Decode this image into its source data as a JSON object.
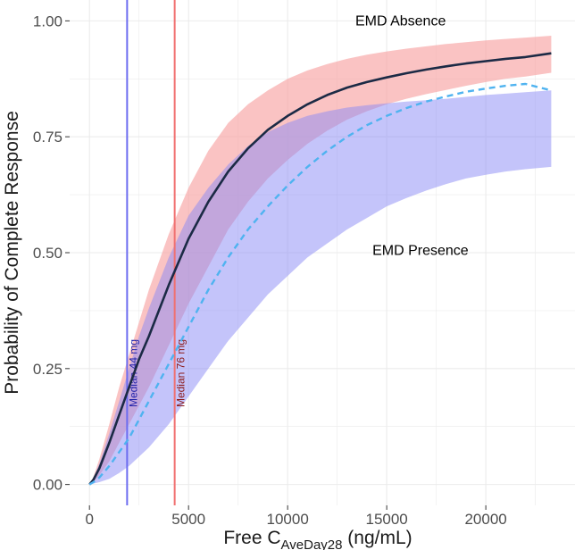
{
  "chart_data": {
    "type": "line",
    "xlabel_main": "Free C",
    "xlabel_sub": "AveDay28",
    "xlabel_unit": " (ng/mL)",
    "ylabel": "Probability of Complete Response",
    "xlim": [
      -1000,
      24500
    ],
    "ylim": [
      -0.045,
      1.045
    ],
    "x_ticks": [
      0,
      5000,
      10000,
      15000,
      20000
    ],
    "x_tick_labels": [
      "0",
      "5000",
      "10000",
      "15000",
      "20000"
    ],
    "y_ticks": [
      0,
      0.25,
      0.5,
      0.75,
      1.0
    ],
    "y_tick_labels": [
      "0.00",
      "0.25",
      "0.50",
      "0.75",
      "1.00"
    ],
    "grid": true,
    "colors": {
      "absence_line": "#1b2a45",
      "absence_band": "#f8a3a3",
      "presence_line": "#4fb3f0",
      "presence_band": "#8a8af5",
      "median44": "#6d6df0",
      "median76": "#f07070",
      "median44_text": "#2222aa",
      "median76_text": "#8b1a1a",
      "grid": "#ebebeb"
    },
    "x": [
      0,
      200,
      500,
      1000,
      1500,
      2000,
      2500,
      3000,
      4000,
      5000,
      6000,
      7000,
      8000,
      9000,
      10000,
      11000,
      12000,
      13000,
      14000,
      15000,
      16000,
      17000,
      18000,
      19000,
      20000,
      21000,
      22000,
      23300
    ],
    "series": [
      {
        "name": "EMD Absence",
        "style": "solid",
        "values": [
          0.0,
          0.01,
          0.035,
          0.09,
          0.15,
          0.21,
          0.27,
          0.32,
          0.43,
          0.53,
          0.61,
          0.675,
          0.725,
          0.765,
          0.795,
          0.82,
          0.84,
          0.856,
          0.868,
          0.878,
          0.887,
          0.895,
          0.902,
          0.908,
          0.913,
          0.918,
          0.922,
          0.93
        ],
        "lower": [
          0.0,
          0.005,
          0.02,
          0.05,
          0.09,
          0.13,
          0.17,
          0.21,
          0.3,
          0.39,
          0.47,
          0.55,
          0.61,
          0.66,
          0.7,
          0.735,
          0.763,
          0.787,
          0.805,
          0.82,
          0.832,
          0.842,
          0.851,
          0.86,
          0.868,
          0.875,
          0.88,
          0.888
        ],
        "upper": [
          0.0,
          0.016,
          0.055,
          0.13,
          0.21,
          0.28,
          0.35,
          0.42,
          0.54,
          0.64,
          0.72,
          0.78,
          0.82,
          0.85,
          0.875,
          0.893,
          0.907,
          0.918,
          0.927,
          0.934,
          0.94,
          0.945,
          0.95,
          0.954,
          0.958,
          0.961,
          0.964,
          0.968
        ]
      },
      {
        "name": "EMD Presence",
        "style": "dashed",
        "values": [
          0.0,
          0.005,
          0.015,
          0.04,
          0.07,
          0.1,
          0.14,
          0.18,
          0.26,
          0.34,
          0.42,
          0.49,
          0.55,
          0.6,
          0.645,
          0.685,
          0.72,
          0.75,
          0.775,
          0.795,
          0.812,
          0.826,
          0.837,
          0.847,
          0.854,
          0.86,
          0.864,
          0.85
        ],
        "lower": [
          0.0,
          0.002,
          0.005,
          0.012,
          0.025,
          0.04,
          0.06,
          0.08,
          0.13,
          0.19,
          0.25,
          0.31,
          0.36,
          0.41,
          0.45,
          0.49,
          0.52,
          0.55,
          0.575,
          0.6,
          0.618,
          0.634,
          0.648,
          0.66,
          0.668,
          0.675,
          0.68,
          0.685
        ],
        "upper": [
          0.0,
          0.014,
          0.045,
          0.11,
          0.18,
          0.25,
          0.32,
          0.38,
          0.49,
          0.58,
          0.64,
          0.69,
          0.73,
          0.76,
          0.78,
          0.795,
          0.805,
          0.813,
          0.818,
          0.822,
          0.826,
          0.829,
          0.832,
          0.836,
          0.84,
          0.843,
          0.846,
          0.85
        ]
      }
    ],
    "vlines": [
      {
        "x": 1900,
        "label": "Median 44 mg"
      },
      {
        "x": 4300,
        "label": "Median 76 mg"
      }
    ],
    "annotations": [
      {
        "text": "EMD Absence",
        "x": 15700,
        "y": 0.99
      },
      {
        "text": "EMD Presence",
        "x": 16700,
        "y": 0.495
      }
    ]
  }
}
